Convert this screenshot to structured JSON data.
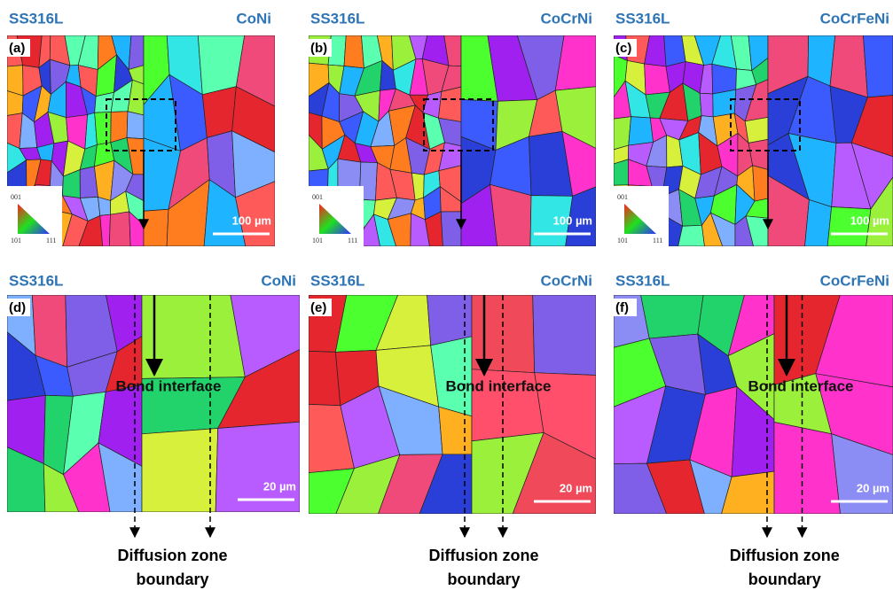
{
  "panels": [
    {
      "label": "(a)",
      "left_material": "SS316L",
      "right_material": "CoNi",
      "scale_bar": "100 µm",
      "legend": {
        "top": "001",
        "left": "101",
        "right": "111"
      }
    },
    {
      "label": "(b)",
      "left_material": "SS316L",
      "right_material": "CoCrNi",
      "scale_bar": "100 µm",
      "legend": {
        "top": "001",
        "left": "101",
        "right": "111"
      }
    },
    {
      "label": "(c)",
      "left_material": "SS316L",
      "right_material": "CoCrFeNi",
      "scale_bar": "100 µm",
      "legend": {
        "top": "001",
        "left": "101",
        "right": "111"
      }
    },
    {
      "label": "(d)",
      "left_material": "SS316L",
      "right_material": "CoNi",
      "scale_bar": "20 µm",
      "annotation": "Bond interface"
    },
    {
      "label": "(e)",
      "left_material": "SS316L",
      "right_material": "CoCrNi",
      "scale_bar": "20 µm",
      "annotation": "Bond interface"
    },
    {
      "label": "(f)",
      "left_material": "SS316L",
      "right_material": "CoCrFeNi",
      "scale_bar": "20 µm",
      "annotation": "Bond interface"
    }
  ],
  "captions": [
    {
      "line1": "Diffusion zone",
      "line2": "boundary"
    },
    {
      "line1": "Diffusion zone",
      "line2": "boundary"
    },
    {
      "line1": "Diffusion zone",
      "line2": "boundary"
    }
  ]
}
